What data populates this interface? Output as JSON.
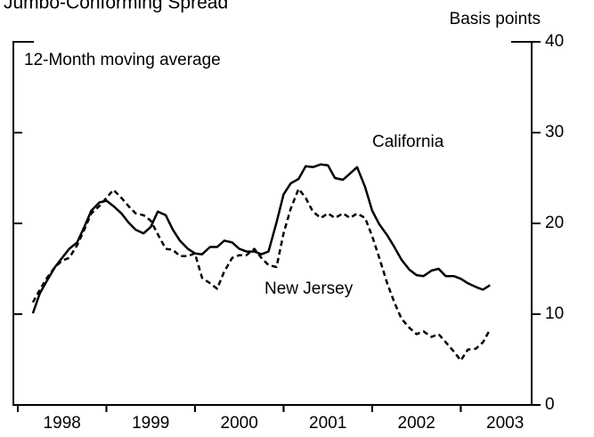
{
  "chart_data": {
    "type": "line",
    "title": "Jumbo-Conforming Spread",
    "y_label": "Basis points",
    "annotation": "12-Month moving average",
    "x": [
      1998.17,
      1998.25,
      1998.33,
      1998.42,
      1998.5,
      1998.58,
      1998.67,
      1998.75,
      1998.83,
      1998.92,
      1999.0,
      1999.08,
      1999.17,
      1999.25,
      1999.33,
      1999.42,
      1999.5,
      1999.58,
      1999.67,
      1999.75,
      1999.83,
      1999.92,
      2000.0,
      2000.08,
      2000.17,
      2000.25,
      2000.33,
      2000.42,
      2000.5,
      2000.58,
      2000.67,
      2000.75,
      2000.83,
      2000.92,
      2001.0,
      2001.08,
      2001.17,
      2001.25,
      2001.33,
      2001.42,
      2001.5,
      2001.58,
      2001.67,
      2001.75,
      2001.83,
      2001.92,
      2002.0,
      2002.08,
      2002.17,
      2002.25,
      2002.33,
      2002.42,
      2002.5,
      2002.58,
      2002.67,
      2002.75,
      2002.83,
      2002.92,
      2003.0,
      2003.08,
      2003.17,
      2003.25,
      2003.33
    ],
    "series": [
      {
        "name": "California",
        "color": "#000000",
        "dash": false,
        "values": [
          10.1,
          12.3,
          13.7,
          15.2,
          16.2,
          17.2,
          17.9,
          19.6,
          21.4,
          22.3,
          22.5,
          21.9,
          21.1,
          20.1,
          19.3,
          18.9,
          19.6,
          21.3,
          20.9,
          19.3,
          18.1,
          17.2,
          16.7,
          16.6,
          17.4,
          17.4,
          18.1,
          17.9,
          17.2,
          16.9,
          16.9,
          16.6,
          16.9,
          20.1,
          23.2,
          24.4,
          24.9,
          26.3,
          26.2,
          26.5,
          26.4,
          25.0,
          24.8,
          25.5,
          26.2,
          24.0,
          21.4,
          19.9,
          18.7,
          17.4,
          16.0,
          14.9,
          14.3,
          14.2,
          14.8,
          15.0,
          14.2,
          14.2,
          13.9,
          13.4,
          13.0,
          12.7,
          13.2
        ]
      },
      {
        "name": "New Jersey",
        "color": "#000000",
        "dash": true,
        "values": [
          11.3,
          12.7,
          14.0,
          15.2,
          15.9,
          16.2,
          17.6,
          19.3,
          21.1,
          21.9,
          22.8,
          23.7,
          22.8,
          21.9,
          21.1,
          20.9,
          20.3,
          18.8,
          17.2,
          17.1,
          16.4,
          16.4,
          16.7,
          14.0,
          13.4,
          12.8,
          14.7,
          16.2,
          16.5,
          16.5,
          17.2,
          16.2,
          15.4,
          15.2,
          18.9,
          21.6,
          23.8,
          22.8,
          21.3,
          20.6,
          21.1,
          20.6,
          21.1,
          20.6,
          21.1,
          20.6,
          18.6,
          16.2,
          13.4,
          11.3,
          9.5,
          8.5,
          7.8,
          8.1,
          7.5,
          7.8,
          6.9,
          5.9,
          4.9,
          6.1,
          6.2,
          6.9,
          8.3
        ]
      }
    ],
    "xlim": [
      1997.95,
      2003.8
    ],
    "xticks": [
      {
        "value": 1998.5,
        "label": "1998"
      },
      {
        "value": 1999.5,
        "label": "1999"
      },
      {
        "value": 2000.5,
        "label": "2000"
      },
      {
        "value": 2001.5,
        "label": "2001"
      },
      {
        "value": 2002.5,
        "label": "2002"
      },
      {
        "value": 2003.5,
        "label": "2003"
      }
    ],
    "ylim": [
      0,
      40
    ],
    "yticks": [
      0,
      10,
      20,
      30,
      40
    ]
  }
}
